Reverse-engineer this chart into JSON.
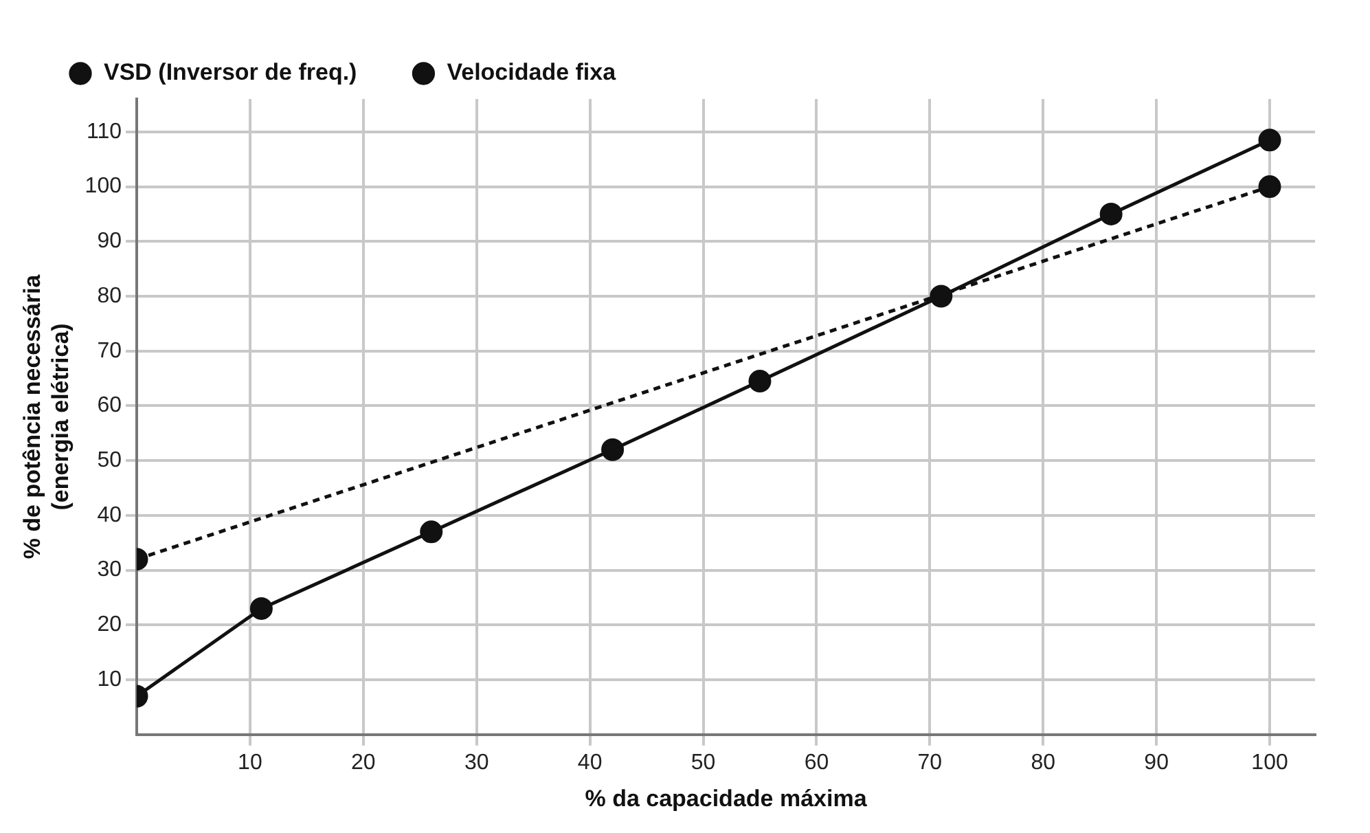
{
  "chart_data": {
    "type": "line",
    "xlabel": "% da capacidade máxima",
    "ylabel": "% de potência necessária\n(energia elétrica)",
    "xlim": [
      0,
      104
    ],
    "xticks": [
      10,
      20,
      30,
      40,
      50,
      60,
      70,
      80,
      90,
      100
    ],
    "ylim": [
      0,
      116
    ],
    "yticks": [
      10,
      20,
      30,
      40,
      50,
      60,
      70,
      80,
      90,
      100,
      110
    ],
    "grid": true,
    "legend": "top",
    "marker": "circle",
    "series": [
      {
        "name": "VSD (Inversor de freq.)",
        "color": "#111111",
        "line_style": "solid",
        "x": [
          0,
          11,
          26,
          42,
          55,
          71,
          86,
          100
        ],
        "values": [
          7,
          23,
          37,
          52,
          64.5,
          80,
          95,
          108.5
        ]
      },
      {
        "name": "Velocidade fixa",
        "color": "#111111",
        "line_style": "dashed",
        "x": [
          0,
          100
        ],
        "values": [
          32,
          100
        ]
      }
    ]
  }
}
